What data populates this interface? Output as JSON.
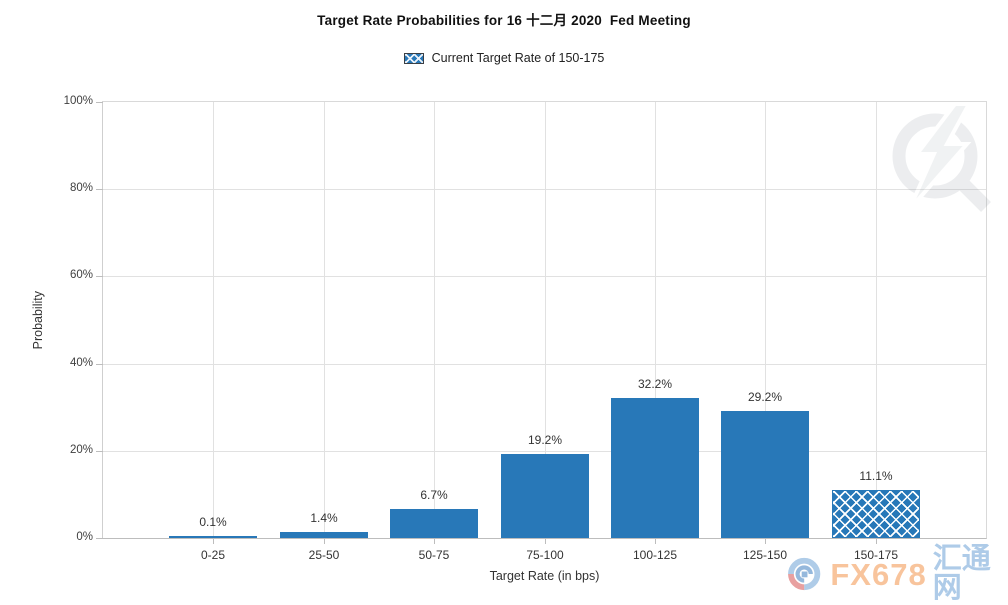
{
  "title": "Target Rate Probabilities for 16 十二月 2020  Fed Meeting",
  "legend": {
    "label": "Current Target Rate of 150-175",
    "swatch_style": "blue-crosshatch"
  },
  "chart_data": {
    "type": "bar",
    "title": "Target Rate Probabilities for 16 十二月 2020  Fed Meeting",
    "categories": [
      "0-25",
      "25-50",
      "50-75",
      "75-100",
      "100-125",
      "125-150",
      "150-175"
    ],
    "values": [
      0.1,
      1.4,
      6.7,
      19.2,
      32.2,
      29.2,
      11.1
    ],
    "data_labels": [
      "0.1%",
      "1.4%",
      "6.7%",
      "19.2%",
      "32.2%",
      "29.2%",
      "11.1%"
    ],
    "xlabel": "Target Rate (in bps)",
    "ylabel": "Probability",
    "ylim": [
      0,
      100
    ],
    "ytick_labels": [
      "0%",
      "20%",
      "40%",
      "60%",
      "80%",
      "100%"
    ],
    "ytick_values": [
      0,
      20,
      40,
      60,
      80,
      100
    ],
    "grid": true,
    "legend_position": "top",
    "legend_entries": [
      "Current Target Rate of 150-175"
    ],
    "highlighted_category": "150-175",
    "highlighted_style": "crosshatch",
    "bar_color": "#2878b8"
  },
  "branding": {
    "footer_text_latin": "FX678",
    "footer_text_cjk": "汇通网",
    "footer_latin_color": "#f8c49c",
    "footer_cjk_color": "#aecbe8",
    "watermark_icon": "q-lightning-logo"
  }
}
